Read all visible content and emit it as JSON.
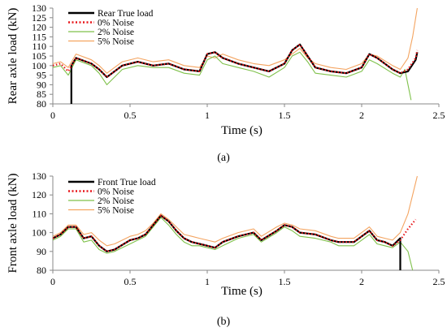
{
  "chart_data": [
    {
      "type": "line",
      "caption": "(a)",
      "xlabel": "Time (s)",
      "ylabel": "Rear axle load (kN)",
      "xlim": [
        0,
        2.5
      ],
      "ylim": [
        80,
        130
      ],
      "xticks": [
        "0",
        "0.5",
        "1",
        "1.5",
        "2",
        "2.5"
      ],
      "yticks": [
        "80",
        "85",
        "90",
        "95",
        "100",
        "105",
        "110",
        "115",
        "120",
        "125",
        "130"
      ],
      "grid": false,
      "legend_position": "top-left",
      "series": [
        {
          "name": "Rear True load",
          "color": "#000000",
          "style": "solid",
          "x": [
            0.12,
            0.12,
            0.15,
            0.25,
            0.3,
            0.35,
            0.45,
            0.55,
            0.65,
            0.75,
            0.85,
            0.95,
            1.0,
            1.05,
            1.1,
            1.2,
            1.3,
            1.4,
            1.5,
            1.55,
            1.6,
            1.65,
            1.7,
            1.8,
            1.9,
            2.0,
            2.05,
            2.1,
            2.2,
            2.25,
            2.3,
            2.35,
            2.36
          ],
          "y": [
            80,
            100,
            104,
            101,
            98,
            94,
            100,
            102,
            100,
            101,
            98,
            97,
            106,
            107,
            104,
            101,
            99,
            97,
            101,
            108,
            111,
            105,
            99,
            97,
            96,
            99,
            106,
            104,
            98,
            96,
            97,
            103,
            107
          ]
        },
        {
          "name": "0% Noise",
          "color": "#e8171b",
          "style": "dotted",
          "x": [
            0.0,
            0.05,
            0.1,
            0.15,
            0.25,
            0.3,
            0.35,
            0.45,
            0.55,
            0.65,
            0.75,
            0.85,
            0.95,
            1.0,
            1.05,
            1.1,
            1.2,
            1.3,
            1.4,
            1.5,
            1.55,
            1.6,
            1.65,
            1.7,
            1.8,
            1.9,
            2.0,
            2.05,
            2.1,
            2.2,
            2.25,
            2.3,
            2.35,
            2.36
          ],
          "y": [
            100,
            101,
            97,
            104,
            101,
            98,
            94,
            100,
            102,
            100,
            101,
            98,
            97,
            106,
            107,
            104,
            101,
            99,
            97,
            101,
            108,
            111,
            105,
            99,
            97,
            96,
            99,
            106,
            104,
            98,
            96,
            98,
            104,
            108
          ]
        },
        {
          "name": "2% Noise",
          "color": "#7fc14b",
          "style": "solid",
          "x": [
            0.0,
            0.05,
            0.1,
            0.15,
            0.25,
            0.3,
            0.35,
            0.45,
            0.55,
            0.65,
            0.75,
            0.85,
            0.95,
            1.0,
            1.05,
            1.1,
            1.2,
            1.3,
            1.4,
            1.5,
            1.55,
            1.6,
            1.65,
            1.7,
            1.8,
            1.9,
            2.0,
            2.05,
            2.1,
            2.2,
            2.25,
            2.28,
            2.3,
            2.32
          ],
          "y": [
            99,
            100,
            95,
            103,
            100,
            96,
            90,
            98,
            100,
            99,
            99,
            96,
            95,
            103,
            105,
            101,
            99,
            97,
            94,
            99,
            105,
            107,
            102,
            96,
            95,
            94,
            97,
            103,
            101,
            96,
            94,
            98,
            90,
            82
          ]
        },
        {
          "name": "5% Noise",
          "color": "#f4a460",
          "style": "solid",
          "x": [
            0.0,
            0.05,
            0.1,
            0.15,
            0.25,
            0.3,
            0.35,
            0.45,
            0.55,
            0.65,
            0.75,
            0.85,
            0.95,
            1.0,
            1.05,
            1.1,
            1.2,
            1.3,
            1.4,
            1.5,
            1.55,
            1.6,
            1.65,
            1.7,
            1.8,
            1.9,
            2.0,
            2.05,
            2.1,
            2.2,
            2.25,
            2.3,
            2.33,
            2.36
          ],
          "y": [
            101,
            102,
            99,
            106,
            103,
            100,
            96,
            102,
            104,
            102,
            103,
            100,
            99,
            105,
            104,
            106,
            103,
            101,
            100,
            103,
            106,
            109,
            104,
            101,
            99,
            98,
            101,
            106,
            105,
            100,
            98,
            104,
            115,
            130
          ]
        }
      ]
    },
    {
      "type": "line",
      "caption": "(b)",
      "xlabel": "Time (s)",
      "ylabel": "Front axle load (kN)",
      "xlim": [
        0,
        2.5
      ],
      "ylim": [
        80,
        130
      ],
      "xticks": [
        "0",
        "0.5",
        "1",
        "1.5",
        "2",
        "2.5"
      ],
      "yticks": [
        "80",
        "90",
        "100",
        "110",
        "120",
        "130"
      ],
      "grid": false,
      "legend_position": "top-left",
      "series": [
        {
          "name": "Front True load",
          "color": "#000000",
          "style": "solid",
          "x": [
            0.0,
            0.05,
            0.1,
            0.15,
            0.2,
            0.25,
            0.3,
            0.35,
            0.4,
            0.5,
            0.55,
            0.6,
            0.65,
            0.7,
            0.75,
            0.8,
            0.85,
            0.9,
            0.95,
            1.0,
            1.05,
            1.1,
            1.2,
            1.3,
            1.35,
            1.45,
            1.5,
            1.55,
            1.6,
            1.7,
            1.8,
            1.85,
            1.95,
            2.0,
            2.05,
            2.1,
            2.15,
            2.2,
            2.25,
            2.25
          ],
          "y": [
            97,
            99,
            103,
            103,
            97,
            98,
            93,
            90,
            91,
            96,
            97,
            99,
            104,
            109,
            106,
            101,
            97,
            95,
            94,
            93,
            92,
            95,
            98,
            100,
            96,
            101,
            104,
            103,
            100,
            99,
            96,
            95,
            95,
            98,
            101,
            96,
            95,
            93,
            97,
            80
          ]
        },
        {
          "name": "0% Noise",
          "color": "#e8171b",
          "style": "dotted",
          "x": [
            0.0,
            0.05,
            0.1,
            0.15,
            0.2,
            0.25,
            0.3,
            0.35,
            0.4,
            0.5,
            0.55,
            0.6,
            0.65,
            0.7,
            0.75,
            0.8,
            0.85,
            0.9,
            0.95,
            1.0,
            1.05,
            1.1,
            1.2,
            1.3,
            1.35,
            1.45,
            1.5,
            1.55,
            1.6,
            1.7,
            1.8,
            1.85,
            1.95,
            2.0,
            2.05,
            2.1,
            2.15,
            2.2,
            2.25,
            2.3,
            2.35
          ],
          "y": [
            97,
            99,
            103,
            103,
            97,
            98,
            93,
            90,
            91,
            96,
            97,
            99,
            104,
            109,
            106,
            101,
            97,
            95,
            94,
            93,
            92,
            95,
            98,
            100,
            96,
            101,
            104,
            103,
            100,
            99,
            96,
            95,
            95,
            98,
            101,
            96,
            95,
            93,
            96,
            102,
            107
          ]
        },
        {
          "name": "2% Noise",
          "color": "#7fc14b",
          "style": "solid",
          "x": [
            0.0,
            0.05,
            0.1,
            0.15,
            0.2,
            0.25,
            0.3,
            0.35,
            0.4,
            0.5,
            0.55,
            0.6,
            0.65,
            0.7,
            0.75,
            0.8,
            0.85,
            0.9,
            0.95,
            1.0,
            1.05,
            1.1,
            1.2,
            1.3,
            1.35,
            1.45,
            1.5,
            1.55,
            1.6,
            1.7,
            1.8,
            1.85,
            1.95,
            2.0,
            2.05,
            2.1,
            2.15,
            2.2,
            2.25,
            2.3,
            2.33
          ],
          "y": [
            96,
            98,
            102,
            102,
            95,
            96,
            91,
            89,
            90,
            94,
            96,
            98,
            103,
            108,
            104,
            99,
            95,
            93,
            93,
            92,
            91,
            93,
            97,
            99,
            95,
            100,
            103,
            101,
            98,
            97,
            95,
            93,
            93,
            96,
            99,
            94,
            93,
            92,
            95,
            90,
            80
          ]
        },
        {
          "name": "5% Noise",
          "color": "#f4a460",
          "style": "solid",
          "x": [
            0.0,
            0.05,
            0.1,
            0.15,
            0.2,
            0.25,
            0.3,
            0.35,
            0.4,
            0.5,
            0.55,
            0.6,
            0.65,
            0.7,
            0.75,
            0.8,
            0.85,
            0.9,
            0.95,
            1.0,
            1.05,
            1.1,
            1.2,
            1.3,
            1.35,
            1.45,
            1.5,
            1.55,
            1.6,
            1.7,
            1.8,
            1.85,
            1.95,
            2.0,
            2.05,
            2.1,
            2.15,
            2.2,
            2.25,
            2.3,
            2.33,
            2.36
          ],
          "y": [
            98,
            100,
            104,
            104,
            99,
            100,
            96,
            93,
            94,
            98,
            99,
            101,
            105,
            110,
            107,
            103,
            99,
            98,
            97,
            96,
            95,
            97,
            100,
            102,
            98,
            103,
            105,
            104,
            102,
            101,
            98,
            97,
            97,
            100,
            103,
            98,
            97,
            96,
            100,
            110,
            120,
            130
          ]
        }
      ]
    }
  ]
}
